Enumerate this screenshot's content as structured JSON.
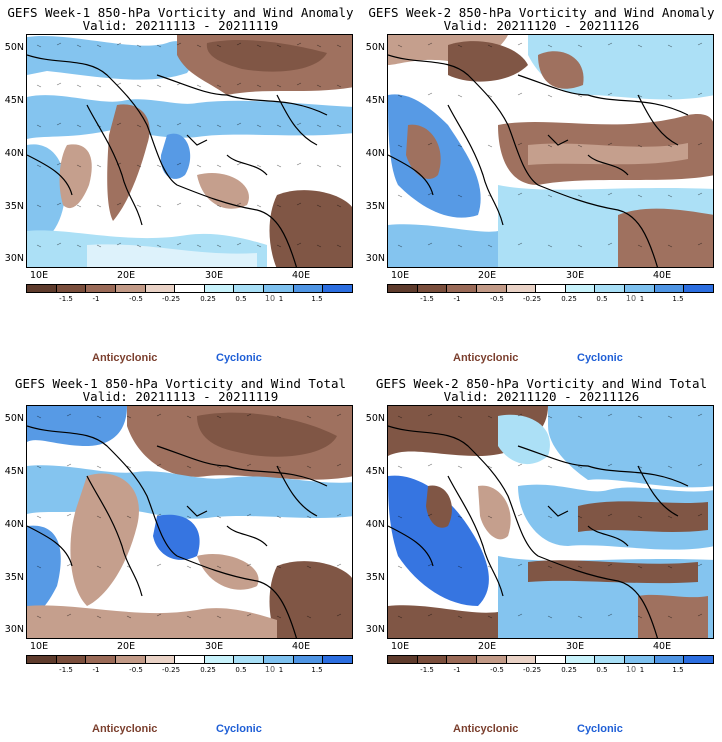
{
  "legend": {
    "ticks": [
      "-1.5",
      "-1",
      "-0.5",
      "-0.25",
      "0.25",
      "0.5",
      "1",
      "1.5"
    ],
    "ten_label": "10",
    "anticyclonic": "Anticyclonic",
    "cyclonic": "Cyclonic",
    "colors": {
      "anticyclonic_label": "#7b3f2e",
      "cyclonic_label": "#1f5fd6",
      "segments": [
        "#5e3b2c",
        "#7a4e3c",
        "#9a6a57",
        "#c29a87",
        "#e9d2c6",
        "#ffffff",
        "#c8f2fb",
        "#a8dff6",
        "#7ec1ef",
        "#4f95e4",
        "#2c6ee0"
      ]
    }
  },
  "axes": {
    "lat_labels": [
      "50N",
      "45N",
      "40N",
      "35N",
      "30N"
    ],
    "lon_labels": [
      "10E",
      "20E",
      "30E",
      "40E"
    ]
  },
  "panels": [
    {
      "id": "week1-anomaly",
      "title": "GEFS Week-1 850-hPa Vorticity and Wind Anomaly",
      "valid": "Valid: 20211113 - 20211119"
    },
    {
      "id": "week2-anomaly",
      "title": "GEFS Week-2 850-hPa Vorticity and Wind Anomaly",
      "valid": "Valid: 20211120 - 20211126"
    },
    {
      "id": "week1-total",
      "title": "GEFS Week-1 850-hPa Vorticity and Wind Total",
      "valid": "Valid: 20211113 - 20211119"
    },
    {
      "id": "week2-total",
      "title": "GEFS Week-2 850-hPa Vorticity and Wind Total",
      "valid": "Valid: 20211120 - 20211126"
    }
  ]
}
